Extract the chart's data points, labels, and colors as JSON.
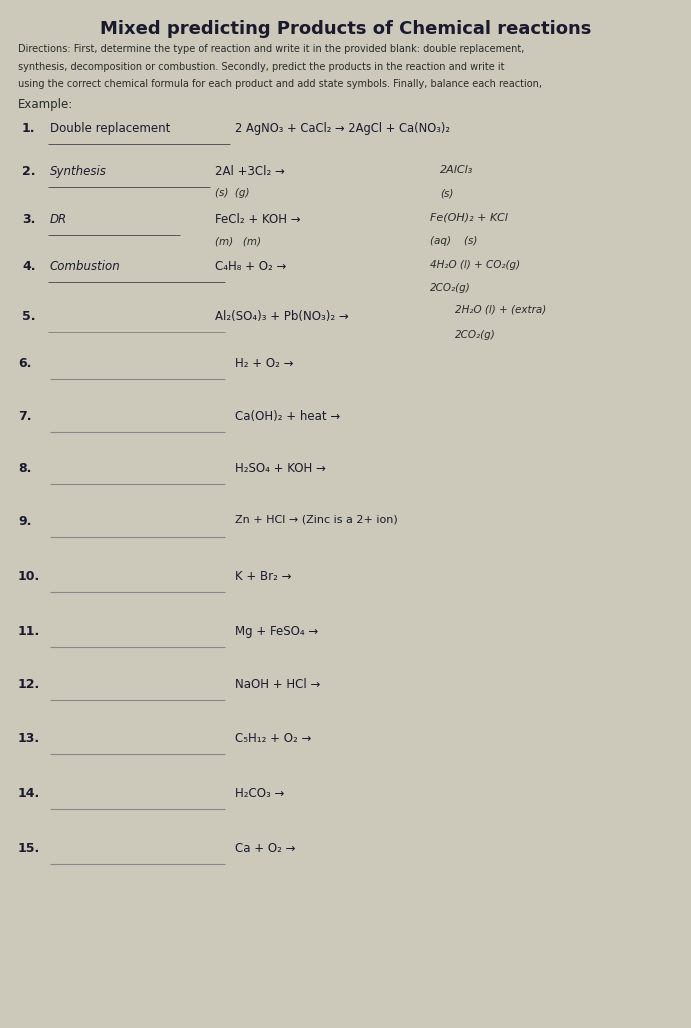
{
  "title": "Mixed predicting Products of Chemical reactions",
  "bg_color": "#ccc9bb",
  "text_color": "#1a1a2e",
  "directions": [
    "Directions: First, determine the type of reaction and write it in the provided blank: double replacement,",
    "synthesis, decomposition or combustion. Secondly, predict the products in the reaction and write it",
    "using the correct chemical formula for each product and add state symbols. Finally, balance each reaction,"
  ],
  "example": "Example:",
  "item1_label": "Double replacement",
  "item1_reaction": "2 AgNO₃ + CaCl₂ → 2AgCl + Ca(NO₃)₂",
  "item2_label": "Synthesis",
  "item2_reaction": "2Al +3Cl₂ →",
  "item2_sub": "(s)  (g)",
  "item2_ans": "2AlCl₃",
  "item2_ans_sub": "(s)",
  "item3_label": "DR",
  "item3_reaction": "FeCl₂ + KOH →",
  "item3_sub": "(m)   (m)",
  "item3_ans": "Fe(OH)₂ + KCl",
  "item3_ans_sub": "(aq)    (s)",
  "item4_label": "Combustion",
  "item4_reaction": "C₄H₈ + O₂ →",
  "item4_ans": "4H₂O (l) + CO₂(g)",
  "item4_ans2": "2CO₂(g)",
  "item5_reaction": "Al₂(SO₄)₃ + Pb(NO₃)₂ →",
  "item5_ans": "2H₂O (l) + (extra)",
  "item5_ans2": "2CO₂(g)",
  "items_simple": [
    {
      "num": 6,
      "reaction": "H₂ + O₂ →"
    },
    {
      "num": 7,
      "reaction": "Ca(OH)₂ + heat →"
    },
    {
      "num": 8,
      "reaction": "H₂SO₄ + KOH →"
    },
    {
      "num": 9,
      "reaction": "Zn + HCl → (Zinc is a 2+ ion)"
    },
    {
      "num": 10,
      "reaction": "K + Br₂ →"
    },
    {
      "num": 11,
      "reaction": "Mg + FeSO₄ →"
    },
    {
      "num": 12,
      "reaction": "NaOH + HCl →"
    },
    {
      "num": 13,
      "reaction": "C₅H₁₂ + O₂ →"
    },
    {
      "num": 14,
      "reaction": "H₂CO₃ →"
    },
    {
      "num": 15,
      "reaction": "Ca + O₂ →"
    }
  ]
}
